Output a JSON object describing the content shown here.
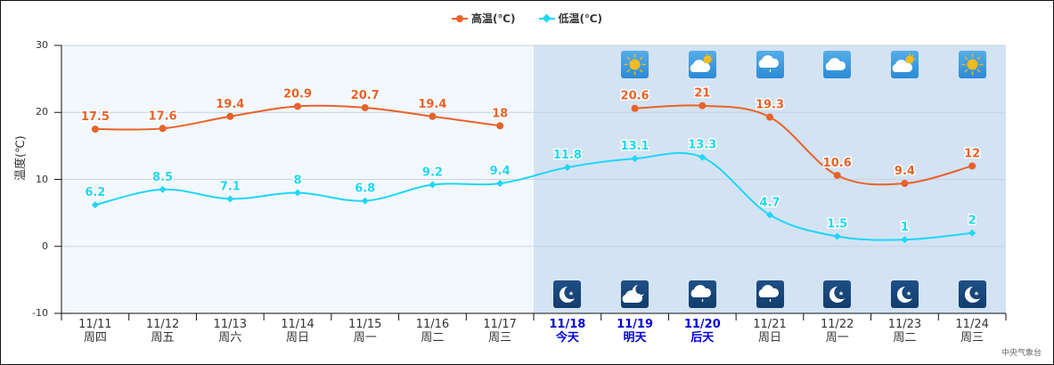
{
  "legend": {
    "high": {
      "label": "高温(℃)",
      "color": "#e8622a"
    },
    "low": {
      "label": "低温(℃)",
      "color": "#1fd6f5"
    }
  },
  "y_axis_title": "温度(℃)",
  "credit": "中央气象台",
  "colors": {
    "past_bg": "#f2f8fd",
    "future_bg": "#d3e3f4",
    "grid": "#c7d3df",
    "highlight_date": "#0000dd"
  },
  "days": [
    {
      "date": "11/11",
      "weekday": "周四",
      "highlight": false
    },
    {
      "date": "11/12",
      "weekday": "周五",
      "highlight": false
    },
    {
      "date": "11/13",
      "weekday": "周六",
      "highlight": false
    },
    {
      "date": "11/14",
      "weekday": "周日",
      "highlight": false
    },
    {
      "date": "11/15",
      "weekday": "周一",
      "highlight": false
    },
    {
      "date": "11/16",
      "weekday": "周二",
      "highlight": false
    },
    {
      "date": "11/17",
      "weekday": "周三",
      "highlight": false
    },
    {
      "date": "11/18",
      "weekday": "今天",
      "highlight": true
    },
    {
      "date": "11/19",
      "weekday": "明天",
      "highlight": true
    },
    {
      "date": "11/20",
      "weekday": "后天",
      "highlight": true
    },
    {
      "date": "11/21",
      "weekday": "周日",
      "highlight": false
    },
    {
      "date": "11/22",
      "weekday": "周一",
      "highlight": false
    },
    {
      "date": "11/23",
      "weekday": "周二",
      "highlight": false
    },
    {
      "date": "11/24",
      "weekday": "周三",
      "highlight": false
    }
  ],
  "day_icons": [
    {
      "index": 8,
      "icon": "sunny"
    },
    {
      "index": 9,
      "icon": "partly-cloudy"
    },
    {
      "index": 10,
      "icon": "cloudy-drizzle"
    },
    {
      "index": 11,
      "icon": "cloudy"
    },
    {
      "index": 12,
      "icon": "partly-cloudy"
    },
    {
      "index": 13,
      "icon": "sunny"
    }
  ],
  "night_icons": [
    {
      "index": 7,
      "icon": "clear-night"
    },
    {
      "index": 8,
      "icon": "partly-cloudy-night"
    },
    {
      "index": 9,
      "icon": "cloudy-drizzle"
    },
    {
      "index": 10,
      "icon": "cloudy-drizzle"
    },
    {
      "index": 11,
      "icon": "clear-night"
    },
    {
      "index": 12,
      "icon": "clear-night"
    },
    {
      "index": 13,
      "icon": "clear-night"
    }
  ],
  "chart_data": {
    "type": "line",
    "title": "",
    "xlabel": "",
    "ylabel": "温度(℃)",
    "ylim": [
      -10,
      30
    ],
    "yticks": [
      30,
      20,
      10,
      0,
      -10
    ],
    "grid": true,
    "legend_position": "top",
    "categories": [
      "11/11 周四",
      "11/12 周五",
      "11/13 周六",
      "11/14 周日",
      "11/15 周一",
      "11/16 周二",
      "11/17 周三",
      "11/18 今天",
      "11/19 明天",
      "11/20 后天",
      "11/21 周日",
      "11/22 周一",
      "11/23 周二",
      "11/24 周三"
    ],
    "series": [
      {
        "name": "高温(℃)",
        "color": "#e8622a",
        "marker": "circle",
        "values": [
          17.5,
          17.6,
          19.4,
          20.9,
          20.7,
          19.4,
          18,
          null,
          20.6,
          21,
          19.3,
          10.6,
          9.4,
          12
        ]
      },
      {
        "name": "低温(℃)",
        "color": "#1fd6f5",
        "marker": "diamond",
        "values": [
          6.2,
          8.5,
          7.1,
          8,
          6.8,
          9.2,
          9.4,
          11.8,
          13.1,
          13.3,
          4.7,
          1.5,
          1,
          2
        ]
      }
    ],
    "annotations": [
      "Background shaded darker from 11/18 onward (forecast)"
    ]
  }
}
